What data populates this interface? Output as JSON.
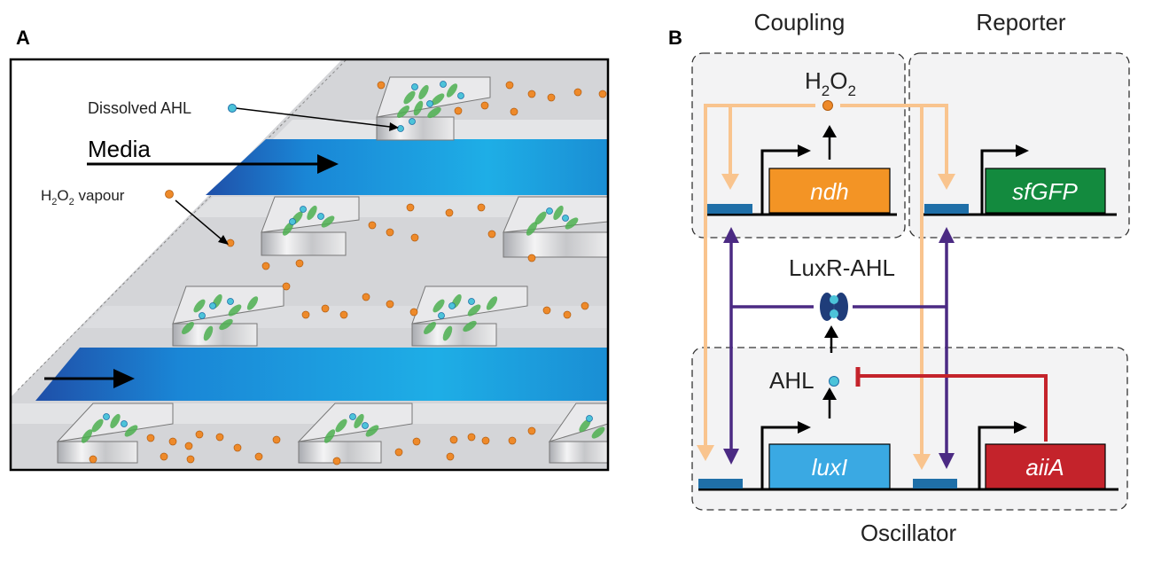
{
  "panel_a": {
    "label": "A",
    "dissolved_ahl": "Dissolved AHL",
    "media": "Media",
    "h2o2_vapour": {
      "h": "H",
      "sub1": "2",
      "o": "O",
      "sub2": "2",
      "rest": " vapour"
    }
  },
  "panel_b": {
    "label": "B",
    "coupling": "Coupling",
    "reporter": "Reporter",
    "oscillator": "Oscillator",
    "h2o2": {
      "h": "H",
      "sub1": "2",
      "o": "O",
      "sub2": "2"
    },
    "luxr_ahl": "LuxR-AHL",
    "ahl": "AHL",
    "genes": {
      "ndh": "ndh",
      "sfgfp": "sfGFP",
      "luxi": "luxI",
      "aiia": "aiiA"
    }
  },
  "colors": {
    "media_dark": "#1f4fa8",
    "media_light": "#1eaee6",
    "h2o2_dot": "#ee8a2a",
    "ahl_dot": "#4cc3d9",
    "cells": "#4caf50",
    "ndh": "#f39425",
    "sfgfp": "#138a3e",
    "luxi": "#3aa9e3",
    "aiia": "#c4232b",
    "peach_arrow": "#f9c48e",
    "purple_arrow": "#4b2a83",
    "red_repress": "#c4232b",
    "promoter": "#1f6fa8"
  }
}
